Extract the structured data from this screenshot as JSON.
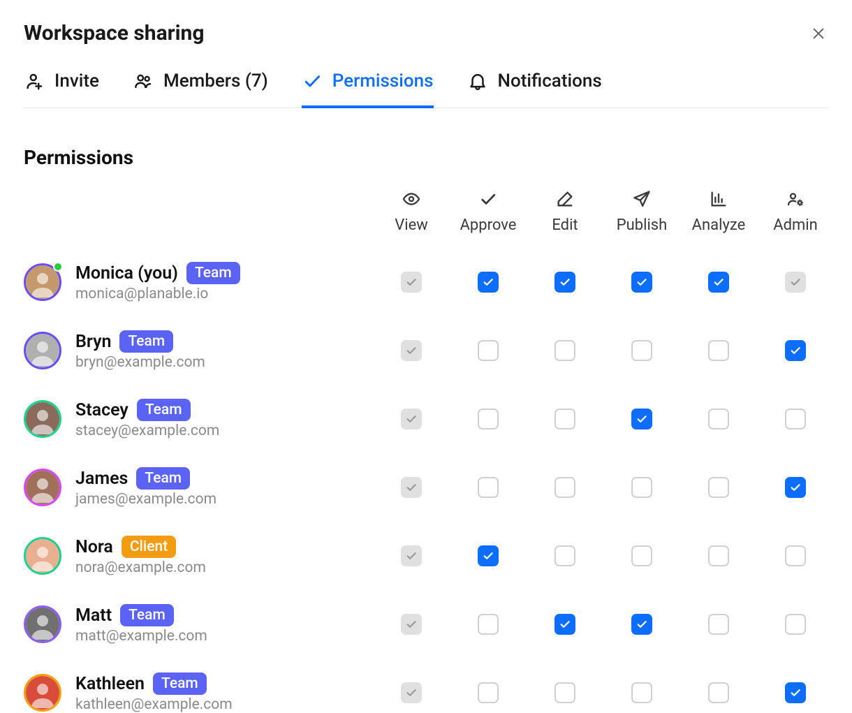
{
  "modal": {
    "title": "Workspace sharing"
  },
  "tabs": [
    {
      "id": "invite",
      "label": "Invite",
      "icon": "invite-icon",
      "active": false
    },
    {
      "id": "members",
      "label": "Members (7)",
      "icon": "members-icon",
      "active": false
    },
    {
      "id": "permissions",
      "label": "Permissions",
      "icon": "check-icon",
      "active": true
    },
    {
      "id": "notifications",
      "label": "Notifications",
      "icon": "bell-icon",
      "active": false
    }
  ],
  "section": {
    "title": "Permissions"
  },
  "columns": [
    {
      "id": "view",
      "label": "View",
      "icon": "eye-icon"
    },
    {
      "id": "approve",
      "label": "Approve",
      "icon": "check-icon"
    },
    {
      "id": "edit",
      "label": "Edit",
      "icon": "pencil-icon"
    },
    {
      "id": "publish",
      "label": "Publish",
      "icon": "send-icon"
    },
    {
      "id": "analyze",
      "label": "Analyze",
      "icon": "chart-icon"
    },
    {
      "id": "admin",
      "label": "Admin",
      "icon": "admin-icon"
    }
  ],
  "badges": {
    "team": {
      "label": "Team",
      "bg": "#5b63f5",
      "fg": "#ffffff"
    },
    "client": {
      "label": "Client",
      "bg": "#f39c12",
      "fg": "#ffffff"
    }
  },
  "checkbox_colors": {
    "checked_bg": "#0d6efd",
    "locked_bg": "#e0e0e0",
    "unchecked_border": "#d0d0d0"
  },
  "members": [
    {
      "name": "Monica (you)",
      "email": "monica@planable.io",
      "badge": "team",
      "avatar_ring": "#6a4cff",
      "avatar_bg": "#c49a6c",
      "presence": true,
      "perms": {
        "view": "locked",
        "approve": "checked",
        "edit": "checked",
        "publish": "checked",
        "analyze": "checked",
        "admin": "locked"
      }
    },
    {
      "name": "Bryn",
      "email": "bryn@example.com",
      "badge": "team",
      "avatar_ring": "#6a4cff",
      "avatar_bg": "#b0b0b0",
      "presence": false,
      "perms": {
        "view": "locked",
        "approve": "unchecked",
        "edit": "unchecked",
        "publish": "unchecked",
        "analyze": "unchecked",
        "admin": "checked"
      }
    },
    {
      "name": "Stacey",
      "email": "stacey@example.com",
      "badge": "team",
      "avatar_ring": "#1bd28a",
      "avatar_bg": "#8a6a5a",
      "presence": false,
      "perms": {
        "view": "locked",
        "approve": "unchecked",
        "edit": "unchecked",
        "publish": "checked",
        "analyze": "unchecked",
        "admin": "unchecked"
      }
    },
    {
      "name": "James",
      "email": "james@example.com",
      "badge": "team",
      "avatar_ring": "#d946ef",
      "avatar_bg": "#a0705a",
      "presence": false,
      "perms": {
        "view": "locked",
        "approve": "unchecked",
        "edit": "unchecked",
        "publish": "unchecked",
        "analyze": "unchecked",
        "admin": "checked"
      }
    },
    {
      "name": "Nora",
      "email": "nora@example.com",
      "badge": "client",
      "avatar_ring": "#1bd28a",
      "avatar_bg": "#e8b090",
      "presence": false,
      "perms": {
        "view": "locked",
        "approve": "checked",
        "edit": "unchecked",
        "publish": "unchecked",
        "analyze": "unchecked",
        "admin": "unchecked"
      }
    },
    {
      "name": "Matt",
      "email": "matt@example.com",
      "badge": "team",
      "avatar_ring": "#8b5cf6",
      "avatar_bg": "#707070",
      "presence": false,
      "perms": {
        "view": "locked",
        "approve": "unchecked",
        "edit": "checked",
        "publish": "checked",
        "analyze": "unchecked",
        "admin": "unchecked"
      }
    },
    {
      "name": "Kathleen",
      "email": "kathleen@example.com",
      "badge": "team",
      "avatar_ring": "#f59e0b",
      "avatar_bg": "#d84c3a",
      "presence": false,
      "perms": {
        "view": "locked",
        "approve": "unchecked",
        "edit": "unchecked",
        "publish": "unchecked",
        "analyze": "unchecked",
        "admin": "checked"
      }
    }
  ]
}
